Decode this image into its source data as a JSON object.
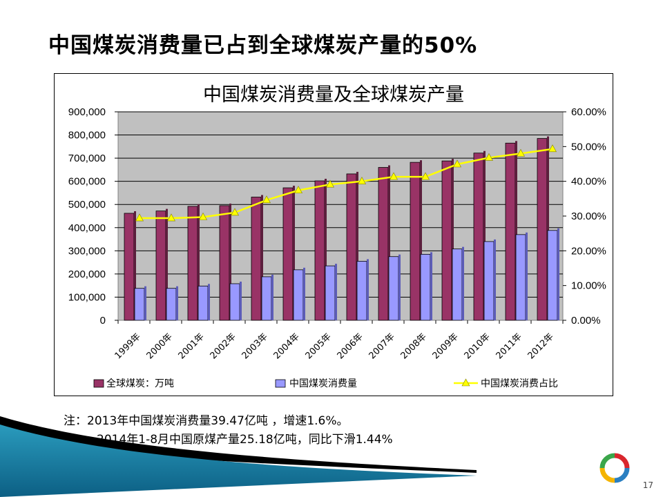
{
  "slide": {
    "title": "中国煤炭消费量已占到全球煤炭产量的50%",
    "note_line1": "注：2013年中国煤炭消费量39.47亿吨 ，增速1.6%。",
    "note_line2": "2014年1-8月中国原煤产量25.18亿吨，同比下滑1.44%",
    "page_number": "17"
  },
  "chart_data": {
    "type": "bar",
    "title": "中国煤炭消费量及全球煤炭产量",
    "categories": [
      "1999年",
      "2000年",
      "2001年",
      "2002年",
      "2003年",
      "2004年",
      "2005年",
      "2006年",
      "2007年",
      "2008年",
      "2009年",
      "2010年",
      "2011年",
      "2012年"
    ],
    "series": [
      {
        "name": "全球煤炭：万吨",
        "type": "bar",
        "axis": "left",
        "color": "#993366",
        "values": [
          462000,
          472000,
          492000,
          495000,
          532000,
          572000,
          602000,
          632000,
          660000,
          682000,
          688000,
          722000,
          765000,
          785000
        ]
      },
      {
        "name": "中国煤炭消费量",
        "type": "bar",
        "axis": "left",
        "color": "#9999FF",
        "values": [
          138000,
          138000,
          148000,
          158000,
          188000,
          218000,
          235000,
          255000,
          275000,
          285000,
          308000,
          340000,
          370000,
          388000
        ]
      },
      {
        "name": "中国煤炭消费占比",
        "type": "line",
        "axis": "right",
        "color": "#FFFF00",
        "values": [
          29.4,
          29.4,
          29.7,
          31.0,
          34.6,
          37.4,
          39.1,
          40.0,
          41.3,
          41.3,
          44.9,
          46.8,
          48.0,
          49.3
        ]
      }
    ],
    "left_axis": {
      "min": 0,
      "max": 900000,
      "step": 100000,
      "tick_labels": [
        "0",
        "100,000",
        "200,000",
        "300,000",
        "400,000",
        "500,000",
        "600,000",
        "700,000",
        "800,000",
        "900,000"
      ]
    },
    "right_axis": {
      "min": 0,
      "max": 60,
      "step": 10,
      "tick_labels": [
        "0.00%",
        "10.00%",
        "20.00%",
        "30.00%",
        "40.00%",
        "50.00%",
        "60.00%"
      ]
    },
    "grid": true,
    "plot_background": "#C0C0C0",
    "legend_position": "bottom"
  }
}
